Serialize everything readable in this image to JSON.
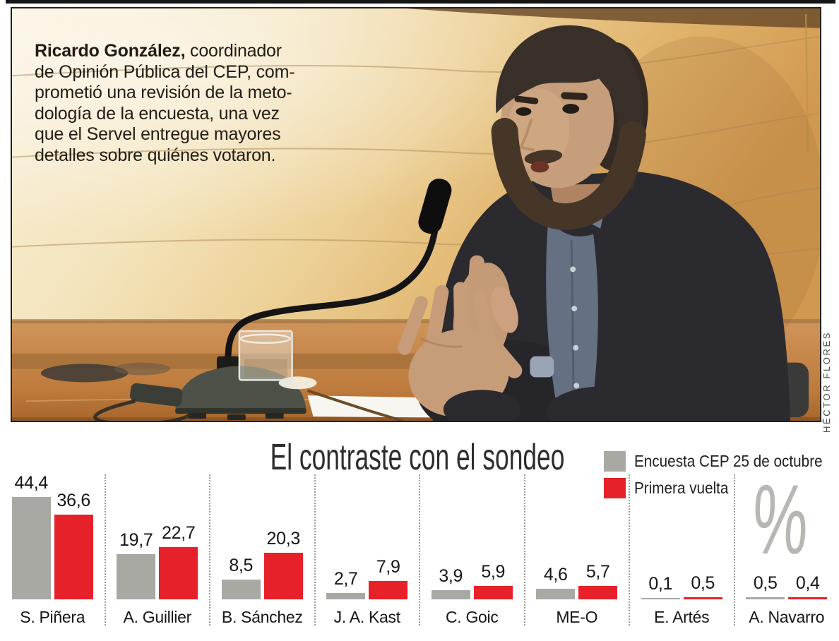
{
  "photo": {
    "caption": {
      "bold": "Ricardo González,",
      "lines": [
        "coordinador",
        "de Opinión Pública del CEP, com-",
        "prometió una revisión de la meto-",
        "dología de la encuesta, una vez",
        "que el Servel entregue mayores",
        "detalles sobre quiénes votaron."
      ]
    },
    "credit": "HÉCTOR FLORES"
  },
  "chart_data": {
    "type": "bar",
    "title": "El contraste con el sondeo",
    "unit_symbol": "%",
    "decimal_separator": ",",
    "categories": [
      "S. Piñera",
      "A. Guillier",
      "B. Sánchez",
      "J. A. Kast",
      "C. Goic",
      "ME-O",
      "E. Artés",
      "A. Navarro"
    ],
    "series": [
      {
        "name": "Encuesta CEP 25 de octubre",
        "color": "#a9a9a4",
        "values": [
          44.4,
          19.7,
          8.5,
          2.7,
          3.9,
          4.6,
          0.1,
          0.5
        ]
      },
      {
        "name": "Primera vuelta",
        "color": "#e62129",
        "values": [
          36.6,
          22.7,
          20.3,
          7.9,
          5.9,
          5.7,
          0.5,
          0.4
        ]
      }
    ],
    "ylim": [
      0,
      48
    ],
    "grid": false,
    "legend_position": "top-right",
    "value_labels": true
  }
}
